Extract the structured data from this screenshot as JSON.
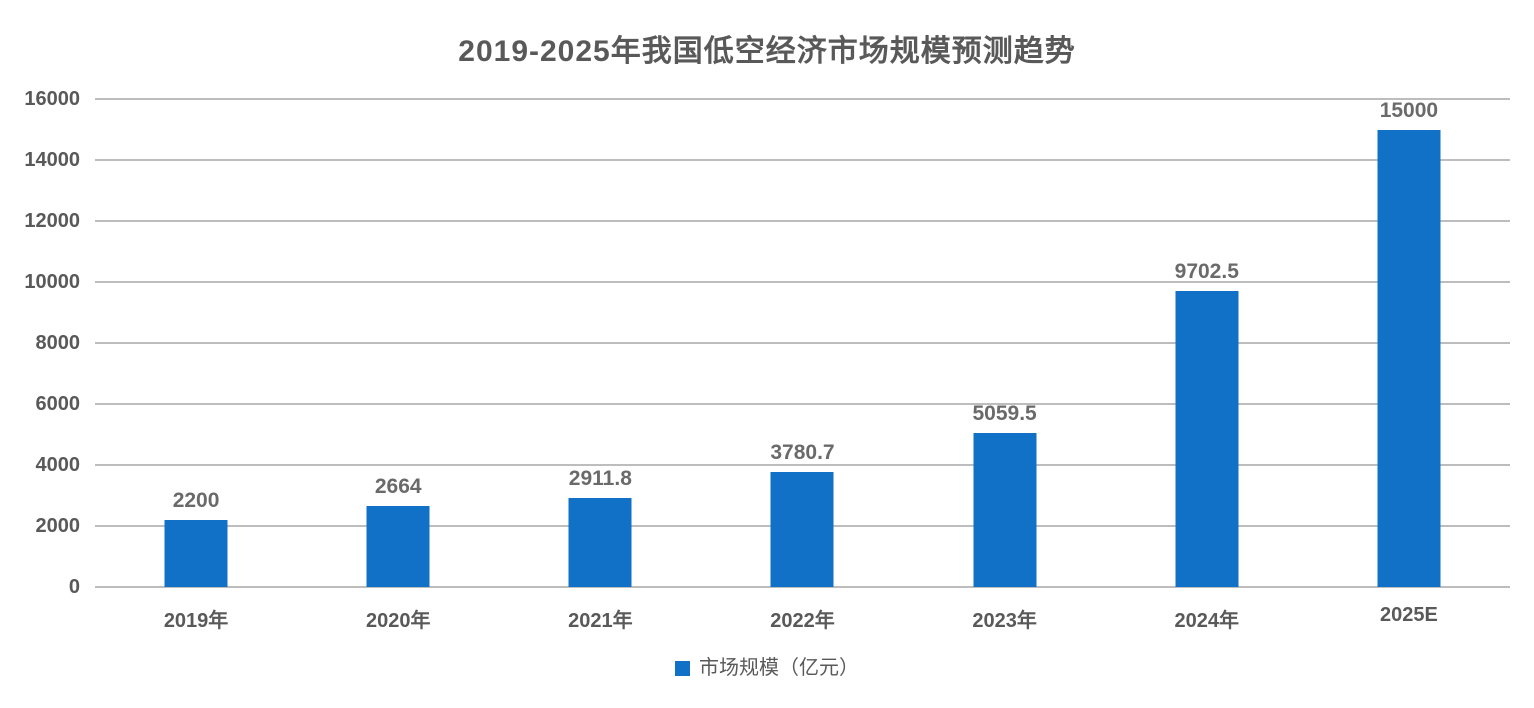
{
  "title": "2019-2025年我国低空经济市场规模预测趋势",
  "legend": {
    "label": "市场规模（亿元）"
  },
  "colors": {
    "bar": "#1171c6",
    "gridline": "#bdbdbd",
    "text": "#595959",
    "value_label": "#6a6a6a",
    "background": "#ffffff"
  },
  "chart_data": {
    "type": "bar",
    "title": "2019-2025年我国低空经济市场规模预测趋势",
    "categories": [
      "2019年",
      "2020年",
      "2021年",
      "2022年",
      "2023年",
      "2024年",
      "2025E"
    ],
    "series": [
      {
        "name": "市场规模（亿元）",
        "values": [
          2200,
          2664,
          2911.8,
          3780.7,
          5059.5,
          9702.5,
          15000
        ],
        "value_labels": [
          "2200",
          "2664",
          "2911.8",
          "3780.7",
          "5059.5",
          "9702.5",
          "15000"
        ]
      }
    ],
    "xlabel": "",
    "ylabel": "",
    "ylim": [
      0,
      16000
    ],
    "yticks": [
      0,
      2000,
      4000,
      6000,
      8000,
      10000,
      12000,
      14000,
      16000
    ],
    "grid": true,
    "legend_position": "bottom"
  }
}
